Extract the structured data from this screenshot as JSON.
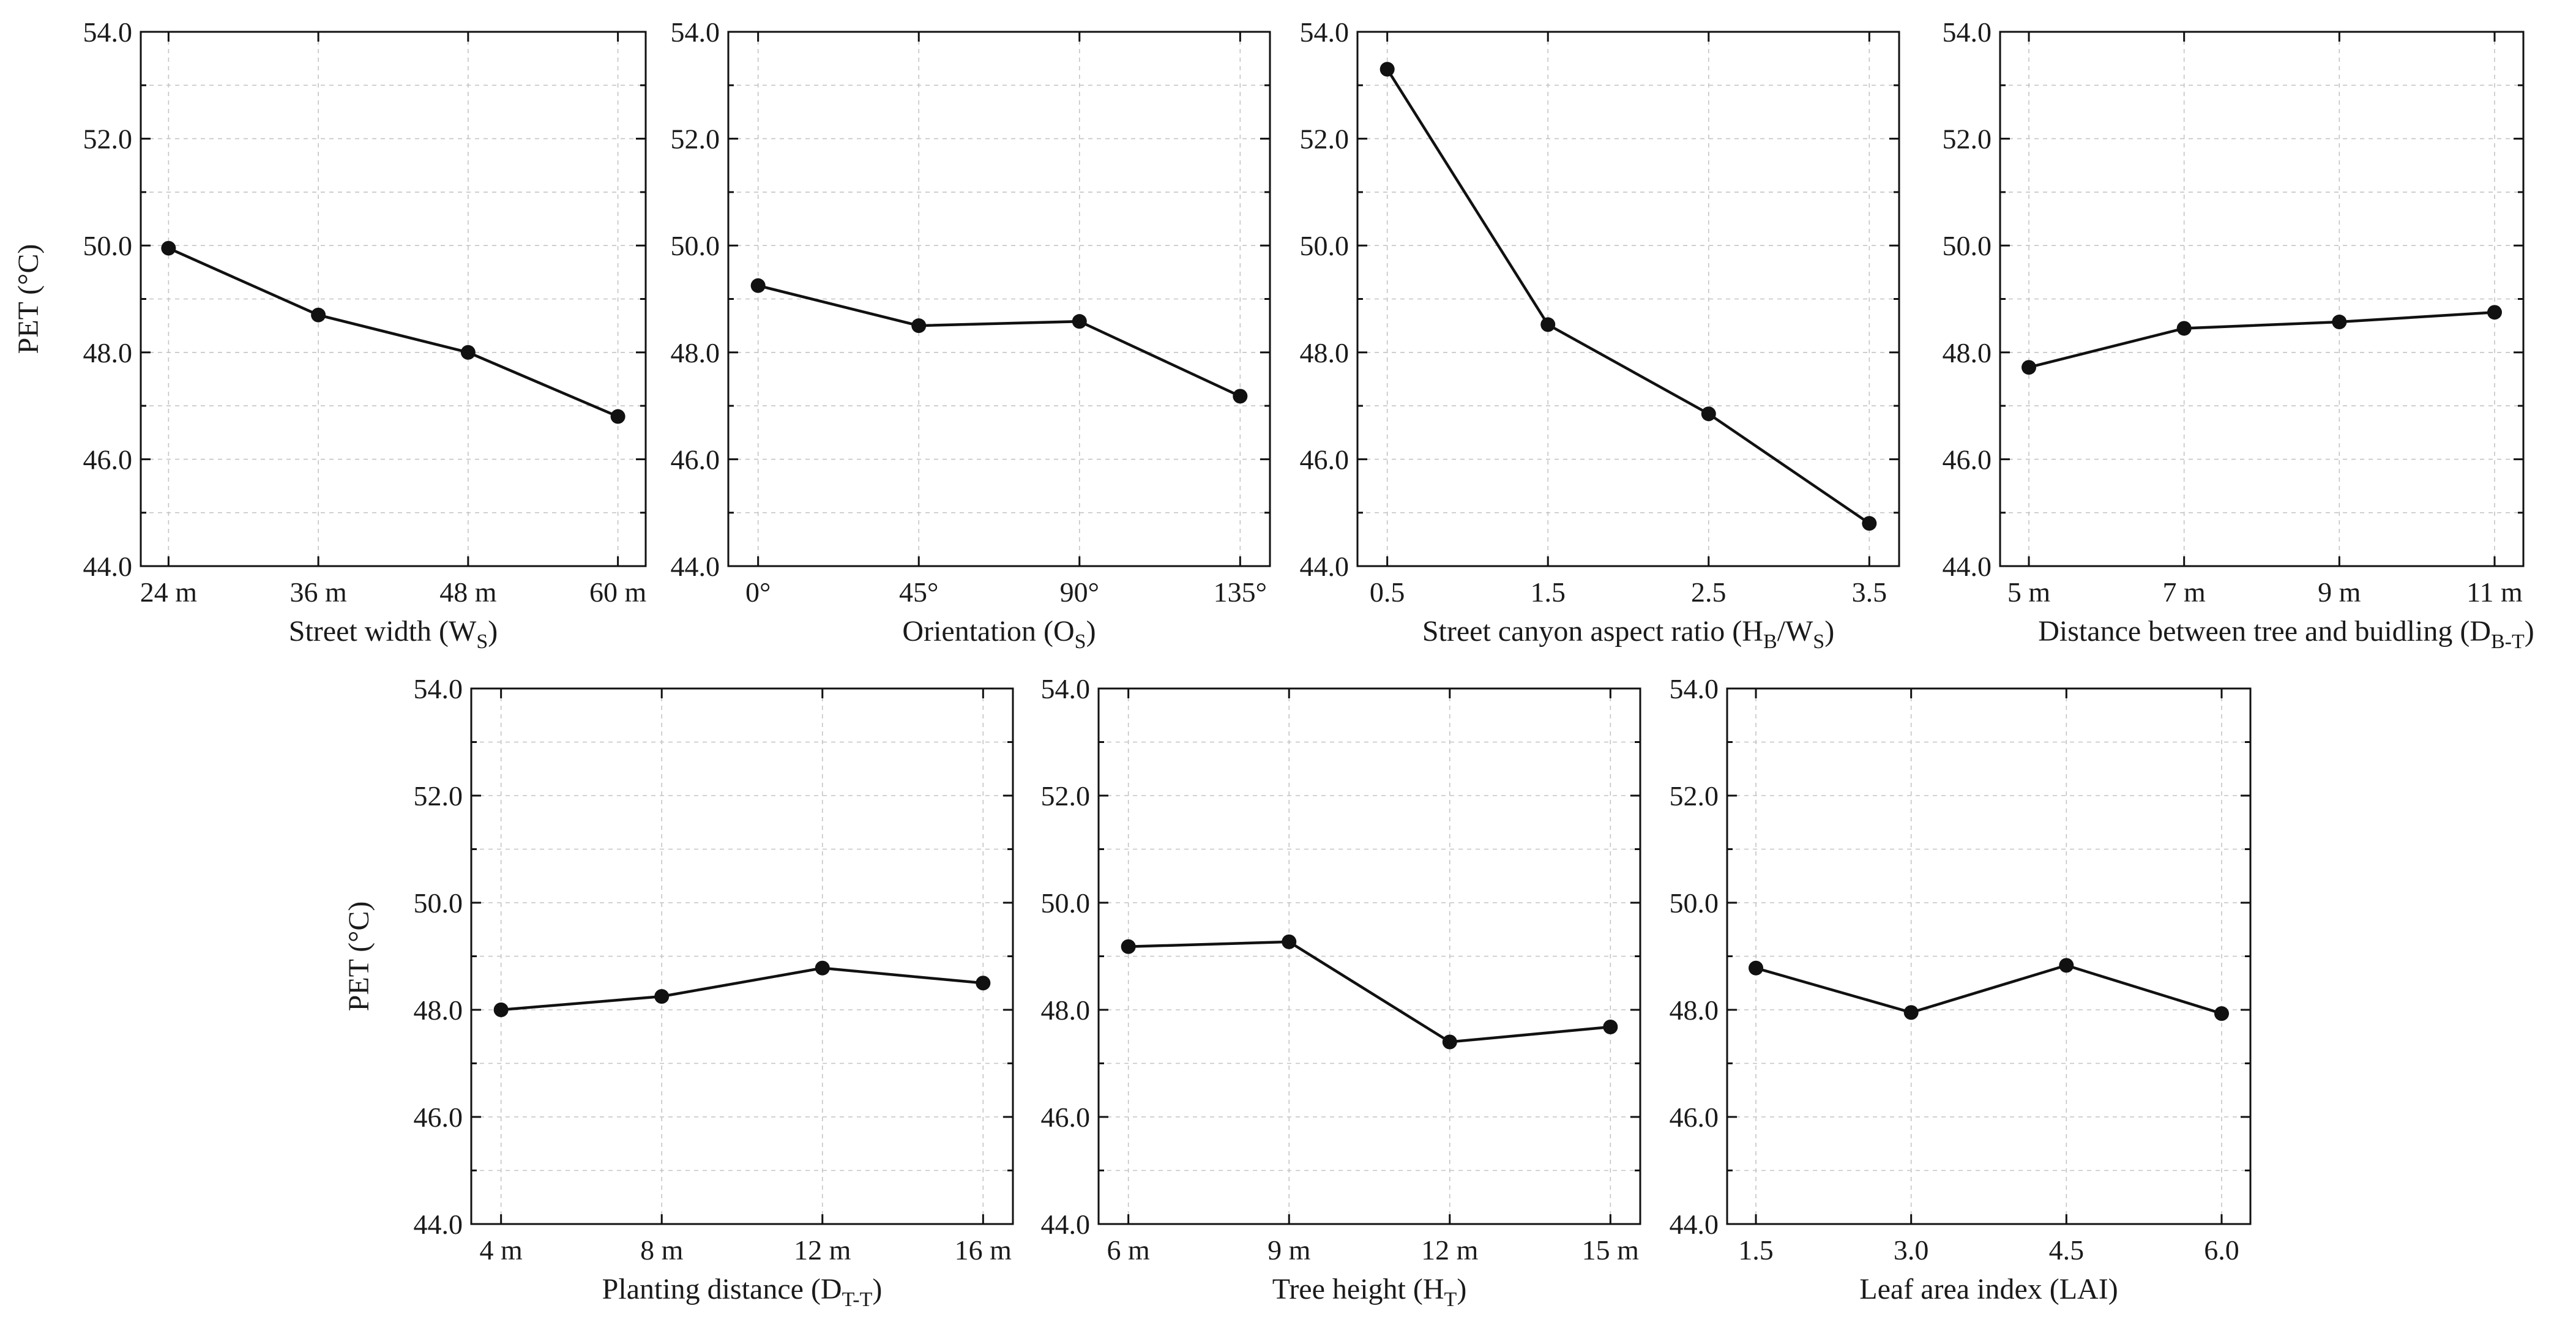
{
  "figure": {
    "ylabel": "PET (°C)"
  },
  "chart_data": [
    {
      "type": "line",
      "title": "",
      "xlabel": "Street width (WS)",
      "xlabel_parts": [
        {
          "t": "Street width (W"
        },
        {
          "t": "S",
          "sub": true
        },
        {
          "t": ")"
        }
      ],
      "ylabel": "PET (°C)",
      "categories": [
        "24 m",
        "36 m",
        "48 m",
        "60 m"
      ],
      "values": [
        49.95,
        48.7,
        48.0,
        46.8
      ],
      "ylim": [
        44.0,
        54.0
      ],
      "yticks": [
        "44.0",
        "46.0",
        "48.0",
        "50.0",
        "52.0",
        "54.0"
      ],
      "grid": true
    },
    {
      "type": "line",
      "title": "",
      "xlabel": "Orientation (OS)",
      "xlabel_parts": [
        {
          "t": "Orientation (O"
        },
        {
          "t": "S",
          "sub": true
        },
        {
          "t": ")"
        }
      ],
      "ylabel": "",
      "categories": [
        "0°",
        "45°",
        "90°",
        "135°"
      ],
      "values": [
        49.25,
        48.5,
        48.58,
        47.18
      ],
      "ylim": [
        44.0,
        54.0
      ],
      "yticks": [
        "44.0",
        "46.0",
        "48.0",
        "50.0",
        "52.0",
        "54.0"
      ],
      "grid": true
    },
    {
      "type": "line",
      "title": "",
      "xlabel": "Street canyon aspect ratio (HB/WS)",
      "xlabel_parts": [
        {
          "t": "Street canyon aspect ratio (H"
        },
        {
          "t": "B",
          "sub": true
        },
        {
          "t": "/W"
        },
        {
          "t": "S",
          "sub": true
        },
        {
          "t": ")"
        }
      ],
      "ylabel": "",
      "categories": [
        "0.5",
        "1.5",
        "2.5",
        "3.5"
      ],
      "values": [
        53.3,
        48.52,
        46.85,
        44.8
      ],
      "ylim": [
        44.0,
        54.0
      ],
      "yticks": [
        "44.0",
        "46.0",
        "48.0",
        "50.0",
        "52.0",
        "54.0"
      ],
      "grid": true
    },
    {
      "type": "line",
      "title": "",
      "xlabel": "Distance between tree and buidling (DB-T)",
      "xlabel_parts": [
        {
          "t": "Distance between tree and buidling (D"
        },
        {
          "t": "B-T",
          "sub": true
        },
        {
          "t": ")"
        }
      ],
      "ylabel": "",
      "categories": [
        "5 m",
        "7 m",
        "9 m",
        "11 m"
      ],
      "values": [
        47.72,
        48.45,
        48.57,
        48.75
      ],
      "ylim": [
        44.0,
        54.0
      ],
      "yticks": [
        "44.0",
        "46.0",
        "48.0",
        "50.0",
        "52.0",
        "54.0"
      ],
      "grid": true
    },
    {
      "type": "line",
      "title": "",
      "xlabel": "Planting distance (DT-T)",
      "xlabel_parts": [
        {
          "t": "Planting distance (D"
        },
        {
          "t": "T-T",
          "sub": true
        },
        {
          "t": ")"
        }
      ],
      "ylabel": "PET (°C)",
      "categories": [
        "4 m",
        "8 m",
        "12 m",
        "16 m"
      ],
      "values": [
        48.0,
        48.25,
        48.78,
        48.5
      ],
      "ylim": [
        44.0,
        54.0
      ],
      "yticks": [
        "44.0",
        "46.0",
        "48.0",
        "50.0",
        "52.0",
        "54.0"
      ],
      "grid": true
    },
    {
      "type": "line",
      "title": "",
      "xlabel": "Tree height (HT)",
      "xlabel_parts": [
        {
          "t": "Tree height (H"
        },
        {
          "t": "T",
          "sub": true
        },
        {
          "t": ")"
        }
      ],
      "ylabel": "",
      "categories": [
        "6 m",
        "9 m",
        "12 m",
        "15 m"
      ],
      "values": [
        49.18,
        49.27,
        47.4,
        47.68
      ],
      "ylim": [
        44.0,
        54.0
      ],
      "yticks": [
        "44.0",
        "46.0",
        "48.0",
        "50.0",
        "52.0",
        "54.0"
      ],
      "grid": true
    },
    {
      "type": "line",
      "title": "",
      "xlabel": "Leaf area index (LAI)",
      "xlabel_parts": [
        {
          "t": "Leaf area index (LAI)"
        }
      ],
      "ylabel": "",
      "categories": [
        "1.5",
        "3.0",
        "4.5",
        "6.0"
      ],
      "values": [
        48.78,
        47.95,
        48.83,
        47.93
      ],
      "ylim": [
        44.0,
        54.0
      ],
      "yticks": [
        "44.0",
        "46.0",
        "48.0",
        "50.0",
        "52.0",
        "54.0"
      ],
      "grid": true
    }
  ]
}
